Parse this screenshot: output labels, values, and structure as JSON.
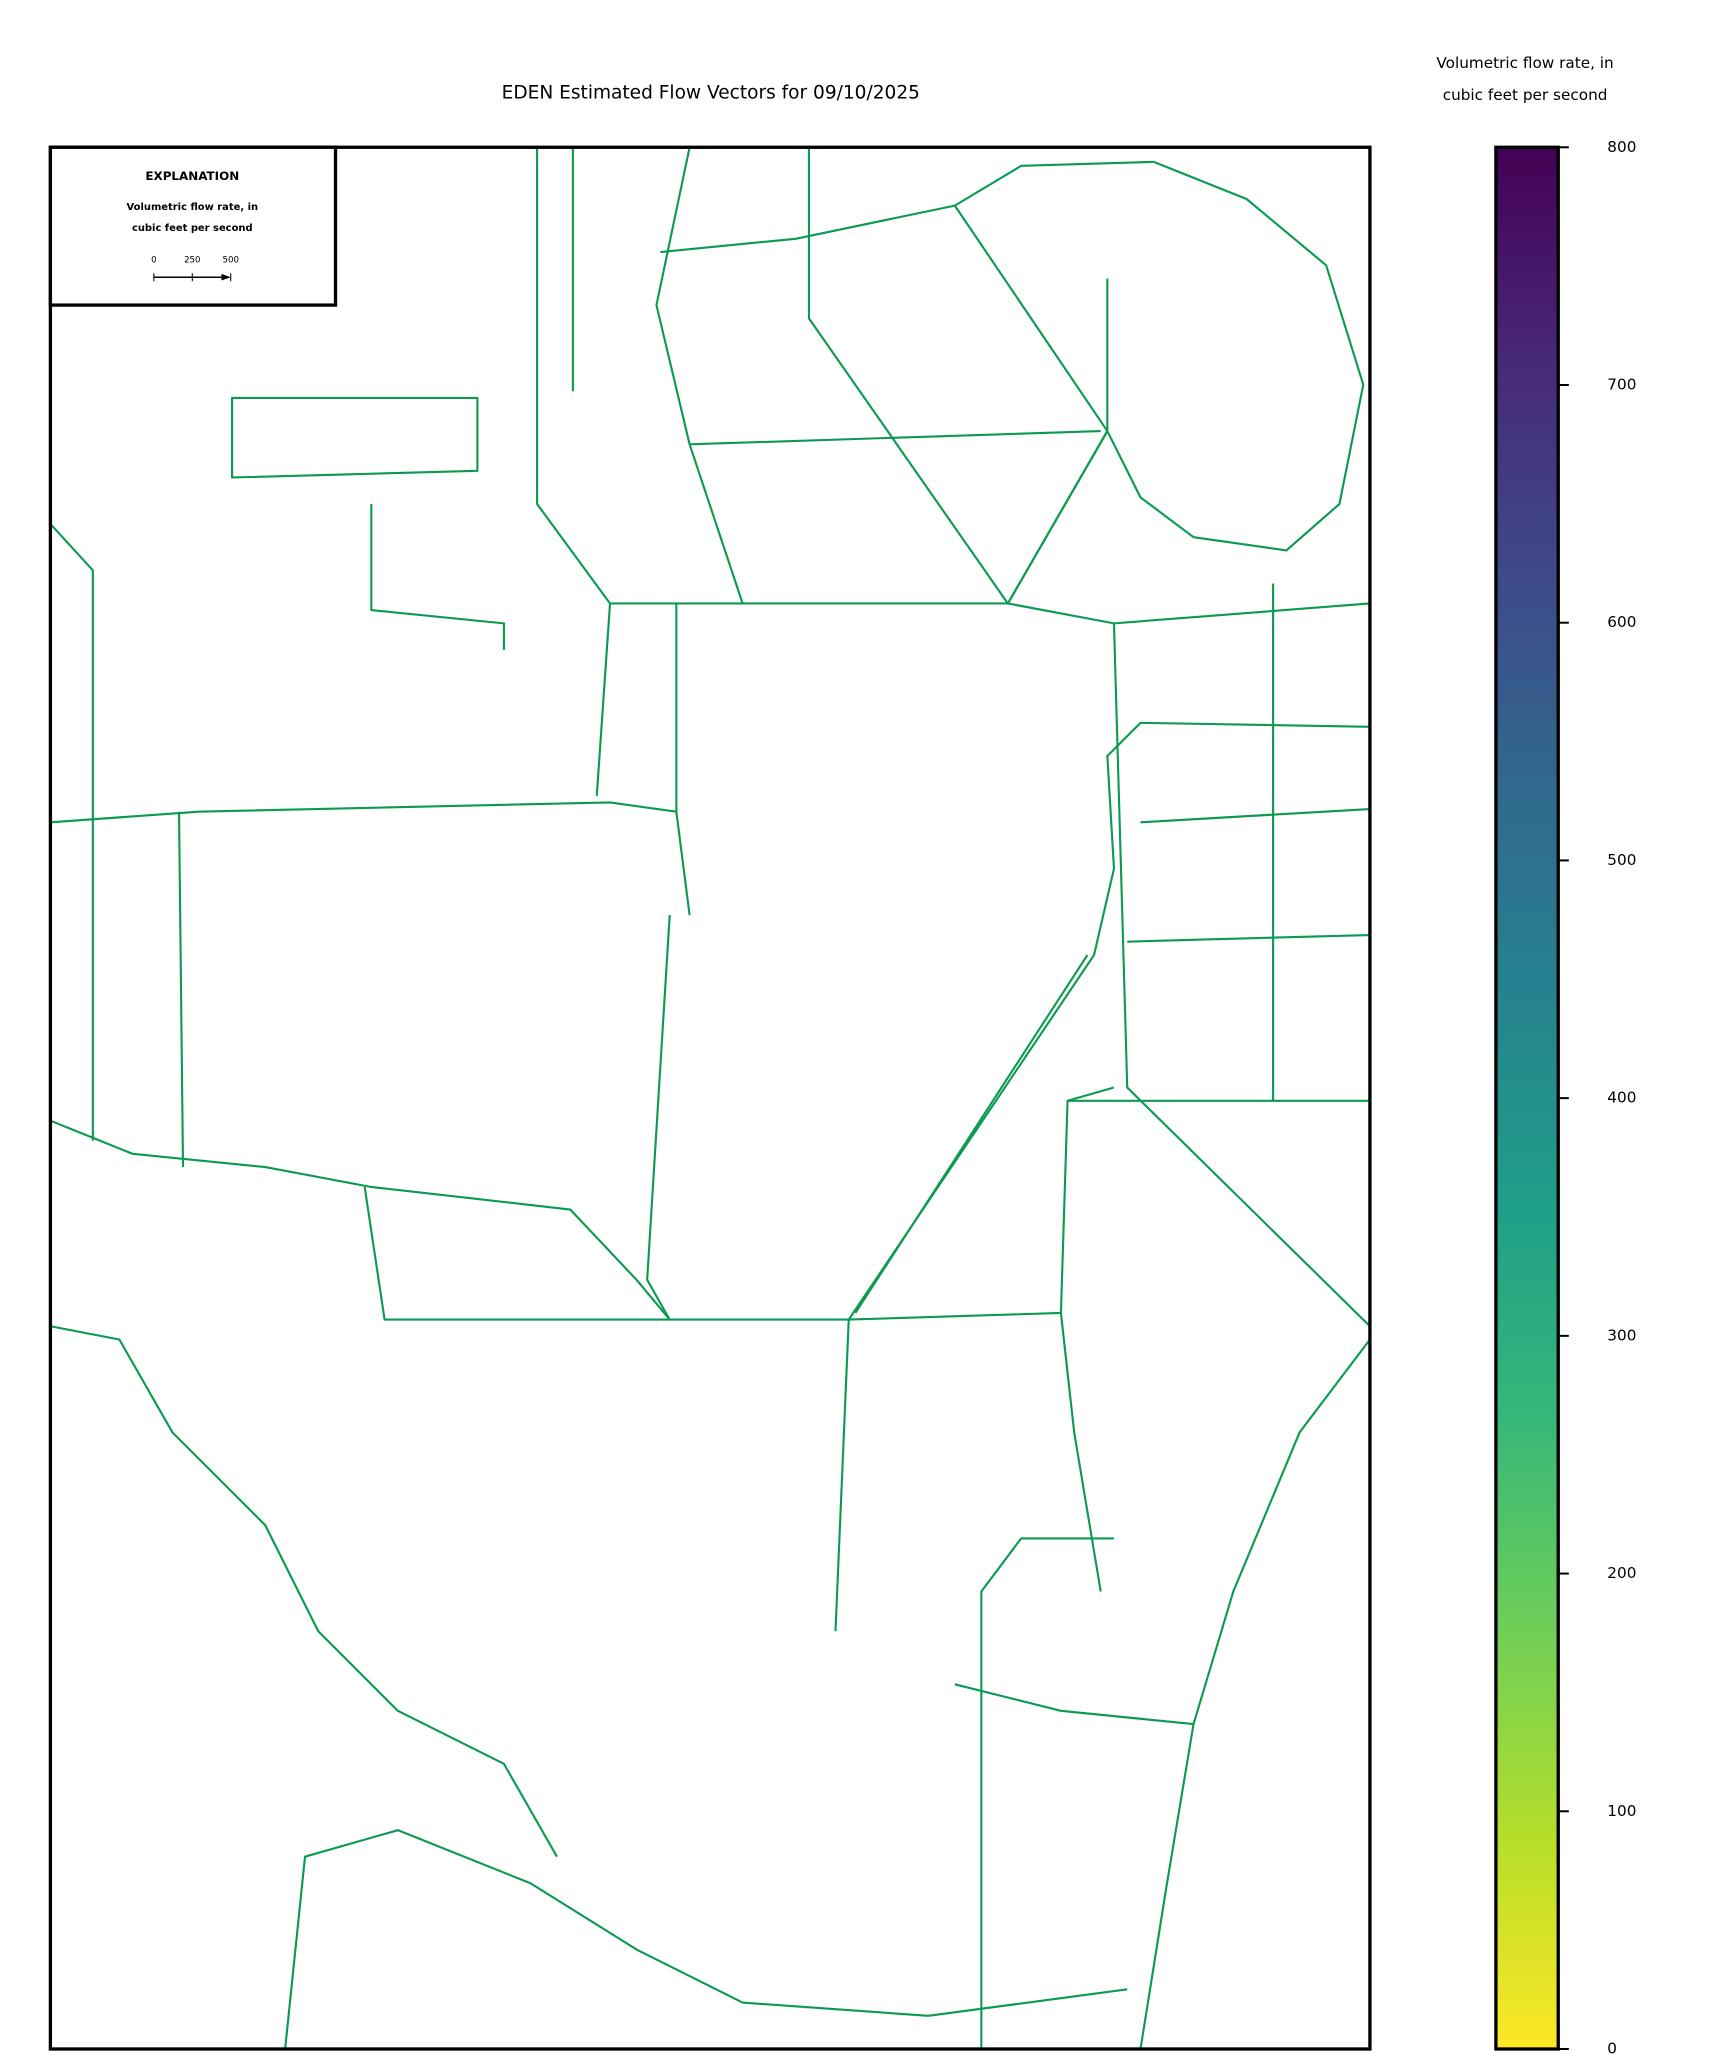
{
  "chart_data": {
    "type": "map",
    "title": "EDEN Estimated Flow Vectors for 09/10/2025",
    "colorbar": {
      "label": [
        "Volumetric flow rate, in",
        "cubic feet per second"
      ],
      "colormap": "viridis_r",
      "lim": [
        0,
        800
      ],
      "ticks": [
        0,
        100,
        200,
        300,
        400,
        500,
        600,
        700,
        800
      ]
    },
    "legend": {
      "title": "EXPLANATION",
      "label": [
        "Volumetric flow rate, in",
        "cubic feet per second"
      ],
      "scale_ticks": [
        0,
        250,
        500
      ]
    }
  }
}
